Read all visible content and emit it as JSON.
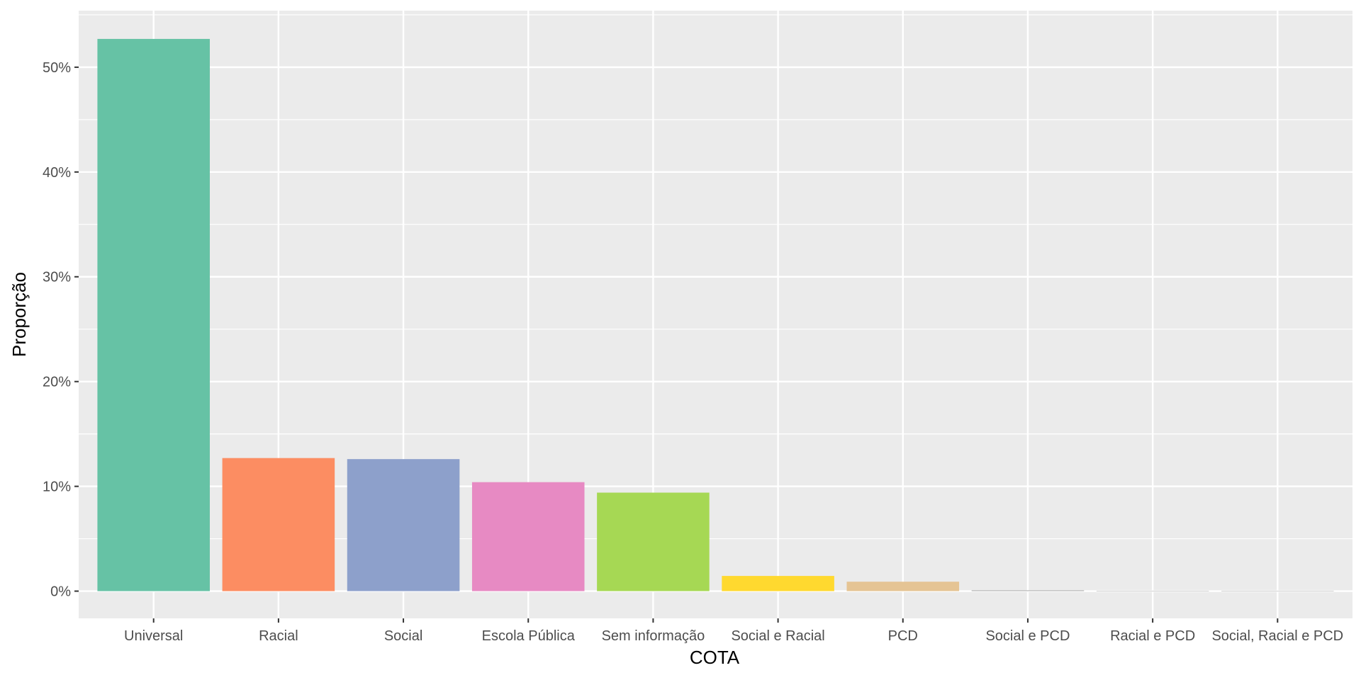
{
  "chart_data": {
    "type": "bar",
    "title": "",
    "xlabel": "COTA",
    "ylabel": "Proporção",
    "categories": [
      "Universal",
      "Racial",
      "Social",
      "Escola Pública",
      "Sem informação",
      "Social e Racial",
      "PCD",
      "Social e PCD",
      "Racial e PCD",
      "Social, Racial e PCD"
    ],
    "values": [
      52.7,
      12.7,
      12.6,
      10.4,
      9.4,
      1.45,
      0.9,
      0.08,
      0.02,
      0.01
    ],
    "colors": [
      "#66c2a5",
      "#fc8d62",
      "#8da0cb",
      "#e78ac3",
      "#a6d854",
      "#ffd92f",
      "#e5c494",
      "#b3b3b3",
      "#b3b3b3",
      "#b3b3b3"
    ],
    "y_ticks": [
      0,
      10,
      20,
      30,
      40,
      50
    ],
    "y_tick_labels": [
      "0%",
      "10%",
      "20%",
      "30%",
      "40%",
      "50%"
    ],
    "ylim": [
      -2.6,
      55.4
    ],
    "grid": true,
    "legend": "none",
    "panel_background": "#ebebeb",
    "grid_color": "#ffffff"
  }
}
